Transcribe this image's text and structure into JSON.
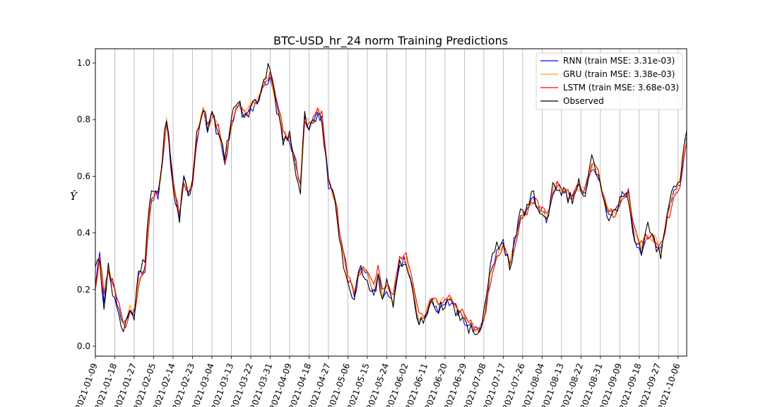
{
  "chart_data": {
    "type": "line",
    "title": "BTC-USD_hr_24 norm Training Predictions",
    "xlabel": "",
    "ylabel": "Ŷ",
    "ylim": [
      -0.035,
      1.05
    ],
    "xlim": [
      "2021-01-09",
      "2021-10-10"
    ],
    "grid": "vertical at x ticks",
    "legend_position": "upper-right",
    "yticks": [
      0.0,
      0.2,
      0.4,
      0.6,
      0.8,
      1.0
    ],
    "ytick_labels": [
      "0.0",
      "0.2",
      "0.4",
      "0.6",
      "0.8",
      "1.0"
    ],
    "xtick_labels": [
      "2021-01-09",
      "2021-01-18",
      "2021-01-27",
      "2021-02-05",
      "2021-02-14",
      "2021-02-23",
      "2021-03-04",
      "2021-03-13",
      "2021-03-22",
      "2021-03-31",
      "2021-04-09",
      "2021-04-18",
      "2021-04-27",
      "2021-05-06",
      "2021-05-15",
      "2021-05-24",
      "2021-06-02",
      "2021-06-11",
      "2021-06-20",
      "2021-06-29",
      "2021-07-08",
      "2021-07-17",
      "2021-07-26",
      "2021-08-04",
      "2021-08-13",
      "2021-08-22",
      "2021-08-31",
      "2021-09-09",
      "2021-09-18",
      "2021-09-27",
      "2021-10-06"
    ],
    "anchor_dates": [
      "2021-01-09",
      "2021-01-11",
      "2021-01-13",
      "2021-01-15",
      "2021-01-18",
      "2021-01-21",
      "2021-01-23",
      "2021-01-25",
      "2021-01-27",
      "2021-01-29",
      "2021-02-01",
      "2021-02-03",
      "2021-02-05",
      "2021-02-07",
      "2021-02-09",
      "2021-02-11",
      "2021-02-14",
      "2021-02-17",
      "2021-02-19",
      "2021-02-21",
      "2021-02-23",
      "2021-02-25",
      "2021-02-28",
      "2021-03-02",
      "2021-03-04",
      "2021-03-07",
      "2021-03-10",
      "2021-03-13",
      "2021-03-16",
      "2021-03-19",
      "2021-03-22",
      "2021-03-25",
      "2021-03-28",
      "2021-03-31",
      "2021-04-03",
      "2021-04-06",
      "2021-04-09",
      "2021-04-12",
      "2021-04-14",
      "2021-04-16",
      "2021-04-18",
      "2021-04-21",
      "2021-04-24",
      "2021-04-27",
      "2021-04-30",
      "2021-05-03",
      "2021-05-06",
      "2021-05-09",
      "2021-05-12",
      "2021-05-15",
      "2021-05-18",
      "2021-05-20",
      "2021-05-22",
      "2021-05-24",
      "2021-05-27",
      "2021-05-30",
      "2021-06-02",
      "2021-06-05",
      "2021-06-08",
      "2021-06-11",
      "2021-06-14",
      "2021-06-17",
      "2021-06-20",
      "2021-06-23",
      "2021-06-26",
      "2021-06-29",
      "2021-07-02",
      "2021-07-05",
      "2021-07-08",
      "2021-07-11",
      "2021-07-14",
      "2021-07-17",
      "2021-07-20",
      "2021-07-22",
      "2021-07-25",
      "2021-07-28",
      "2021-07-31",
      "2021-08-03",
      "2021-08-06",
      "2021-08-09",
      "2021-08-12",
      "2021-08-15",
      "2021-08-18",
      "2021-08-21",
      "2021-08-24",
      "2021-08-27",
      "2021-08-30",
      "2021-09-02",
      "2021-09-05",
      "2021-09-07",
      "2021-09-10",
      "2021-09-13",
      "2021-09-16",
      "2021-09-19",
      "2021-09-22",
      "2021-09-25",
      "2021-09-28",
      "2021-10-01",
      "2021-10-04",
      "2021-10-07",
      "2021-10-10"
    ],
    "series": [
      {
        "name": "RNN (train MSE: 3.31e-03)",
        "color": "#0000ff",
        "values": [
          0.21,
          0.33,
          0.16,
          0.26,
          0.2,
          0.09,
          0.08,
          0.13,
          0.11,
          0.24,
          0.28,
          0.48,
          0.54,
          0.53,
          0.64,
          0.8,
          0.56,
          0.46,
          0.59,
          0.55,
          0.56,
          0.73,
          0.83,
          0.76,
          0.82,
          0.76,
          0.64,
          0.78,
          0.86,
          0.81,
          0.84,
          0.86,
          0.92,
          0.95,
          0.85,
          0.74,
          0.73,
          0.63,
          0.56,
          0.8,
          0.77,
          0.82,
          0.8,
          0.57,
          0.52,
          0.35,
          0.24,
          0.18,
          0.27,
          0.25,
          0.19,
          0.26,
          0.17,
          0.21,
          0.15,
          0.3,
          0.3,
          0.2,
          0.08,
          0.11,
          0.16,
          0.13,
          0.16,
          0.15,
          0.12,
          0.09,
          0.07,
          0.05,
          0.1,
          0.25,
          0.33,
          0.37,
          0.28,
          0.35,
          0.45,
          0.48,
          0.52,
          0.48,
          0.45,
          0.55,
          0.57,
          0.53,
          0.52,
          0.56,
          0.54,
          0.63,
          0.6,
          0.5,
          0.46,
          0.47,
          0.53,
          0.54,
          0.38,
          0.33,
          0.4,
          0.37,
          0.34,
          0.46,
          0.55,
          0.58,
          0.74
        ]
      },
      {
        "name": "GRU (train MSE: 3.38e-03)",
        "color": "#ffa500",
        "values": [
          0.2,
          0.32,
          0.17,
          0.27,
          0.21,
          0.1,
          0.08,
          0.13,
          0.12,
          0.23,
          0.28,
          0.47,
          0.54,
          0.54,
          0.64,
          0.81,
          0.57,
          0.47,
          0.58,
          0.56,
          0.57,
          0.74,
          0.84,
          0.77,
          0.81,
          0.77,
          0.65,
          0.77,
          0.86,
          0.82,
          0.85,
          0.86,
          0.93,
          0.96,
          0.86,
          0.75,
          0.73,
          0.64,
          0.56,
          0.8,
          0.78,
          0.83,
          0.81,
          0.58,
          0.52,
          0.36,
          0.25,
          0.19,
          0.27,
          0.26,
          0.2,
          0.27,
          0.18,
          0.22,
          0.16,
          0.31,
          0.31,
          0.21,
          0.09,
          0.12,
          0.17,
          0.14,
          0.17,
          0.16,
          0.13,
          0.1,
          0.08,
          0.05,
          0.1,
          0.24,
          0.32,
          0.36,
          0.29,
          0.35,
          0.44,
          0.48,
          0.52,
          0.48,
          0.46,
          0.55,
          0.57,
          0.54,
          0.53,
          0.56,
          0.55,
          0.63,
          0.61,
          0.51,
          0.47,
          0.47,
          0.53,
          0.54,
          0.4,
          0.35,
          0.4,
          0.38,
          0.35,
          0.45,
          0.54,
          0.58,
          0.73
        ]
      },
      {
        "name": "LSTM (train MSE: 3.68e-03)",
        "color": "#ff0000",
        "values": [
          0.2,
          0.32,
          0.18,
          0.26,
          0.21,
          0.11,
          0.08,
          0.12,
          0.12,
          0.22,
          0.27,
          0.46,
          0.53,
          0.54,
          0.63,
          0.8,
          0.58,
          0.47,
          0.57,
          0.56,
          0.57,
          0.73,
          0.84,
          0.78,
          0.81,
          0.78,
          0.65,
          0.76,
          0.85,
          0.82,
          0.85,
          0.86,
          0.92,
          0.97,
          0.87,
          0.76,
          0.73,
          0.65,
          0.56,
          0.79,
          0.79,
          0.83,
          0.82,
          0.59,
          0.53,
          0.37,
          0.26,
          0.19,
          0.27,
          0.26,
          0.21,
          0.27,
          0.19,
          0.22,
          0.17,
          0.31,
          0.32,
          0.22,
          0.1,
          0.12,
          0.17,
          0.15,
          0.17,
          0.16,
          0.14,
          0.11,
          0.08,
          0.05,
          0.09,
          0.23,
          0.31,
          0.35,
          0.29,
          0.34,
          0.44,
          0.48,
          0.52,
          0.49,
          0.46,
          0.55,
          0.58,
          0.54,
          0.53,
          0.56,
          0.55,
          0.64,
          0.61,
          0.52,
          0.47,
          0.46,
          0.53,
          0.55,
          0.41,
          0.36,
          0.39,
          0.38,
          0.36,
          0.44,
          0.53,
          0.57,
          0.72
        ]
      },
      {
        "name": "Observed",
        "color": "#000000",
        "values": [
          0.28,
          0.3,
          0.15,
          0.27,
          0.17,
          0.06,
          0.09,
          0.14,
          0.1,
          0.25,
          0.3,
          0.5,
          0.55,
          0.54,
          0.66,
          0.82,
          0.55,
          0.45,
          0.6,
          0.54,
          0.57,
          0.75,
          0.85,
          0.78,
          0.84,
          0.74,
          0.66,
          0.8,
          0.87,
          0.8,
          0.84,
          0.87,
          0.94,
          1.0,
          0.84,
          0.72,
          0.74,
          0.62,
          0.56,
          0.83,
          0.76,
          0.81,
          0.8,
          0.59,
          0.49,
          0.33,
          0.22,
          0.17,
          0.28,
          0.24,
          0.18,
          0.25,
          0.16,
          0.22,
          0.14,
          0.31,
          0.29,
          0.19,
          0.07,
          0.1,
          0.17,
          0.12,
          0.16,
          0.14,
          0.11,
          0.08,
          0.06,
          0.02,
          0.12,
          0.28,
          0.35,
          0.38,
          0.27,
          0.36,
          0.46,
          0.49,
          0.54,
          0.47,
          0.44,
          0.57,
          0.56,
          0.53,
          0.52,
          0.57,
          0.53,
          0.66,
          0.59,
          0.49,
          0.45,
          0.48,
          0.54,
          0.53,
          0.36,
          0.34,
          0.42,
          0.36,
          0.33,
          0.48,
          0.56,
          0.6,
          0.76
        ]
      }
    ],
    "legend": [
      {
        "label": "RNN (train MSE: 3.31e-03)",
        "color": "#0000ff"
      },
      {
        "label": "GRU (train MSE: 3.38e-03)",
        "color": "#ffa500"
      },
      {
        "label": "LSTM (train MSE: 3.68e-03)",
        "color": "#ff0000"
      },
      {
        "label": "Observed",
        "color": "#000000"
      }
    ]
  }
}
